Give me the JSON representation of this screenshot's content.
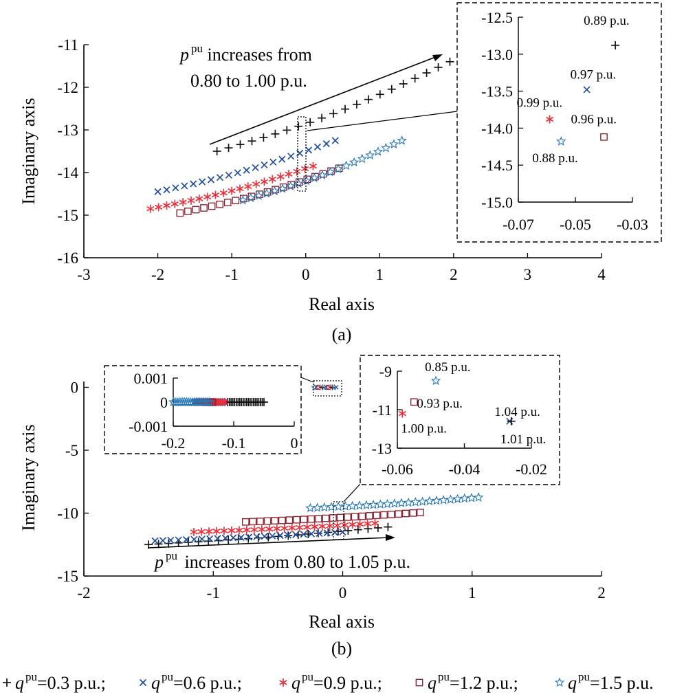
{
  "colors": {
    "q03": "#111111",
    "q06": "#1f4e9a",
    "q09": "#e8313a",
    "q12": "#8b1e2e",
    "q15": "#2a7ab8"
  },
  "legend": [
    {
      "marker": "plus",
      "color_key": "q03",
      "prefix": "q",
      "sup": "pu",
      "text": "=0.3 p.u.;"
    },
    {
      "marker": "cross",
      "color_key": "q06",
      "prefix": "q",
      "sup": "pu",
      "text": "=0.6 p.u.;"
    },
    {
      "marker": "asterisk",
      "color_key": "q09",
      "prefix": "q",
      "sup": "pu",
      "text": "=0.9 p.u.;"
    },
    {
      "marker": "square",
      "color_key": "q12",
      "prefix": "q",
      "sup": "pu",
      "text": "=1.2 p.u.;"
    },
    {
      "marker": "star",
      "color_key": "q15",
      "prefix": "q",
      "sup": "pu",
      "text": "=1.5 p.u."
    }
  ],
  "panel_a": {
    "caption": "(a)",
    "annot_line1_var": "p",
    "annot_line1_sup": "pu",
    "annot_line1_rest": " increases from",
    "annot_line2": "0.80 to 1.00 p.u."
  },
  "panel_b": {
    "caption": "(b)",
    "annot_var": "p",
    "annot_sup": "pu",
    "annot_rest": " increases from 0.80 to 1.05 p.u."
  },
  "chart_data": [
    {
      "type": "scatter",
      "id": "a-main",
      "xlabel": "Real axis",
      "ylabel": "Imaginary axis",
      "xlim": [
        -3,
        4
      ],
      "ylim": [
        -16,
        -11
      ],
      "xticks": [
        -3,
        -2,
        -1,
        0,
        1,
        2,
        3,
        4
      ],
      "yticks": [
        -16,
        -15,
        -14,
        -13,
        -12,
        -11
      ],
      "series": [
        {
          "name": "q=0.3 p.u.",
          "marker": "plus",
          "color_key": "q03",
          "x_start": -1.2,
          "x_end": 1.95,
          "y_start": -13.5,
          "y_end": -11.4,
          "count": 21
        },
        {
          "name": "q=0.6 p.u.",
          "marker": "cross",
          "color_key": "q06",
          "x_start": -2.0,
          "x_end": 0.4,
          "y_start": -14.45,
          "y_end": -13.25,
          "count": 21
        },
        {
          "name": "q=0.9 p.u.",
          "marker": "asterisk",
          "color_key": "q09",
          "x_start": -2.1,
          "x_end": 0.1,
          "y_start": -14.85,
          "y_end": -13.85,
          "count": 21
        },
        {
          "name": "q=1.2 p.u.",
          "marker": "square",
          "color_key": "q12",
          "x_start": -1.7,
          "x_end": 0.45,
          "y_start": -14.95,
          "y_end": -13.9,
          "count": 21
        },
        {
          "name": "q=1.5 p.u.",
          "marker": "star",
          "color_key": "q15",
          "x_start": -0.85,
          "x_end": 1.3,
          "y_start": -14.65,
          "y_end": -13.25,
          "count": 21
        }
      ]
    },
    {
      "type": "scatter",
      "id": "a-inset",
      "xlim": [
        -0.07,
        -0.03
      ],
      "ylim": [
        -15.0,
        -12.5
      ],
      "xticks": [
        -0.07,
        -0.05,
        -0.03
      ],
      "yticks": [
        -15.0,
        -14.5,
        -14.0,
        -13.5,
        -13.0,
        -12.5
      ],
      "xtick_labels": [
        "-0.07",
        "-0.05",
        "-0.03"
      ],
      "ytick_labels": [
        "-15.0",
        "-14.5",
        "-14.0",
        "-13.5",
        "-13.0",
        "-12.5"
      ],
      "points": [
        {
          "marker": "plus",
          "color_key": "q03",
          "x": -0.036,
          "y": -12.88,
          "label": "0.89 p.u."
        },
        {
          "marker": "cross",
          "color_key": "q06",
          "x": -0.046,
          "y": -13.48,
          "label": "0.97 p.u."
        },
        {
          "marker": "asterisk",
          "color_key": "q09",
          "x": -0.059,
          "y": -13.88,
          "label": "0.99 p.u."
        },
        {
          "marker": "square",
          "color_key": "q12",
          "x": -0.04,
          "y": -14.12,
          "label": "0.96 p.u."
        },
        {
          "marker": "star",
          "color_key": "q15",
          "x": -0.055,
          "y": -14.18,
          "label": "0.88 p.u."
        }
      ]
    },
    {
      "type": "scatter",
      "id": "b-main",
      "xlabel": "Real axis",
      "ylabel": "Imaginary axis",
      "xlim": [
        -2,
        2
      ],
      "ylim": [
        -15,
        1.5
      ],
      "xticks": [
        -2,
        -1,
        0,
        1,
        2
      ],
      "yticks": [
        -15,
        -10,
        -5,
        0
      ],
      "series": [
        {
          "name": "q=0.3 p.u.",
          "marker": "plus",
          "color_key": "q03",
          "x_start": -1.5,
          "x_end": 0.35,
          "y_start": -12.5,
          "y_end": -11.1,
          "count": 25
        },
        {
          "name": "q=0.6 p.u.",
          "marker": "cross",
          "color_key": "q06",
          "x_start": -1.45,
          "x_end": 0.0,
          "y_start": -12.2,
          "y_end": -11.5,
          "count": 25
        },
        {
          "name": "q=0.9 p.u.",
          "marker": "asterisk",
          "color_key": "q09",
          "x_start": -1.15,
          "x_end": 0.25,
          "y_start": -11.5,
          "y_end": -10.8,
          "count": 25
        },
        {
          "name": "q=1.2 p.u.",
          "marker": "square",
          "color_key": "q12",
          "x_start": -0.75,
          "x_end": 0.6,
          "y_start": -10.7,
          "y_end": -9.95,
          "count": 25
        },
        {
          "name": "q=1.5 p.u.",
          "marker": "star",
          "color_key": "q15",
          "x_start": -0.25,
          "x_end": 1.05,
          "y_start": -9.6,
          "y_end": -8.75,
          "count": 25
        }
      ],
      "origin_cluster": {
        "x_start": -0.22,
        "x_end": -0.05,
        "y": 0.0
      }
    },
    {
      "type": "scatter",
      "id": "b-inset-left",
      "xlim": [
        -0.2,
        0
      ],
      "ylim": [
        -0.001,
        0.001
      ],
      "xticks": [
        -0.2,
        -0.1,
        0
      ],
      "yticks": [
        -0.001,
        0,
        0.001
      ],
      "xtick_labels": [
        "-0.2",
        "-0.1",
        "0"
      ],
      "ytick_labels": [
        "-0.001",
        "0",
        "0.001"
      ],
      "bands": [
        {
          "marker": "plus",
          "color_key": "q03",
          "x_start": -0.11,
          "x_end": -0.05,
          "count": 22
        },
        {
          "marker": "cross",
          "color_key": "q06",
          "x_start": -0.165,
          "x_end": -0.115,
          "count": 16
        },
        {
          "marker": "asterisk",
          "color_key": "q09",
          "x_start": -0.15,
          "x_end": -0.115,
          "count": 12
        },
        {
          "marker": "square",
          "color_key": "q12",
          "x_start": -0.16,
          "x_end": -0.135,
          "count": 10
        },
        {
          "marker": "star",
          "color_key": "q15",
          "x_start": -0.2,
          "x_end": -0.14,
          "count": 20
        }
      ]
    },
    {
      "type": "scatter",
      "id": "b-inset-right",
      "xlim": [
        -0.06,
        -0.02
      ],
      "ylim": [
        -13,
        -9
      ],
      "xticks": [
        -0.06,
        -0.04,
        -0.02
      ],
      "yticks": [
        -13,
        -11,
        -9
      ],
      "xtick_labels": [
        "-0.06",
        "-0.04",
        "-0.02"
      ],
      "ytick_labels": [
        "-13",
        "-11",
        "-9"
      ],
      "points": [
        {
          "marker": "star",
          "color_key": "q15",
          "x": -0.0485,
          "y": -9.5,
          "label": "0.85 p.u."
        },
        {
          "marker": "square",
          "color_key": "q12",
          "x": -0.055,
          "y": -10.6,
          "label": "0.93 p.u."
        },
        {
          "marker": "asterisk",
          "color_key": "q09",
          "x": -0.0585,
          "y": -11.2,
          "label": "1.00 p.u."
        },
        {
          "marker": "cross",
          "color_key": "q06",
          "x": -0.0265,
          "y": -11.6,
          "label": "1.04 p.u."
        },
        {
          "marker": "plus",
          "color_key": "q03",
          "x": -0.026,
          "y": -11.6,
          "label": "1.01 p.u."
        }
      ]
    }
  ]
}
